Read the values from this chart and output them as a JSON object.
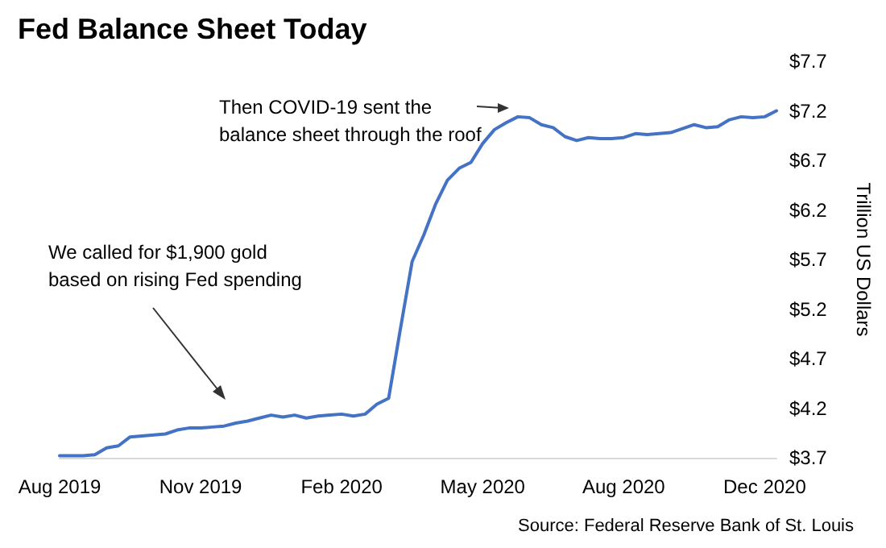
{
  "chart_data": {
    "type": "line",
    "title": "Fed Balance Sheet Today",
    "ylabel": "Trillion US Dollars",
    "categories": [
      "Aug 2019",
      null,
      null,
      null,
      null,
      null,
      null,
      null,
      null,
      null,
      null,
      null,
      "Nov 2019",
      null,
      null,
      null,
      null,
      null,
      null,
      null,
      null,
      null,
      null,
      null,
      "Feb 2020",
      null,
      null,
      null,
      null,
      null,
      null,
      null,
      null,
      null,
      null,
      null,
      "May 2020",
      null,
      null,
      null,
      null,
      null,
      null,
      null,
      null,
      null,
      null,
      null,
      "Aug 2020",
      null,
      null,
      null,
      null,
      null,
      null,
      null,
      null,
      null,
      null,
      null,
      "Dec 2020",
      null
    ],
    "series": [
      {
        "color": "#4472c4",
        "values": [
          3.72,
          3.72,
          3.72,
          3.73,
          3.8,
          3.82,
          3.91,
          3.92,
          3.93,
          3.94,
          3.98,
          4.0,
          4.0,
          4.01,
          4.02,
          4.05,
          4.07,
          4.1,
          4.13,
          4.11,
          4.13,
          4.1,
          4.12,
          4.13,
          4.14,
          4.12,
          4.14,
          4.24,
          4.3,
          5.0,
          5.68,
          5.95,
          6.26,
          6.5,
          6.62,
          6.68,
          6.87,
          7.01,
          7.08,
          7.14,
          7.13,
          7.06,
          7.03,
          6.94,
          6.9,
          6.93,
          6.92,
          6.92,
          6.93,
          6.97,
          6.96,
          6.97,
          6.98,
          7.02,
          7.06,
          7.03,
          7.04,
          7.11,
          7.14,
          7.13,
          7.14,
          7.2
        ]
      }
    ],
    "ylim": [
      3.7,
      7.7
    ],
    "yticks": [
      {
        "value": 3.7,
        "label": "$3.7"
      },
      {
        "value": 4.2,
        "label": "$4.2"
      },
      {
        "value": 4.7,
        "label": "$4.7"
      },
      {
        "value": 5.2,
        "label": "$5.2"
      },
      {
        "value": 5.7,
        "label": "$5.7"
      },
      {
        "value": 6.2,
        "label": "$6.2"
      },
      {
        "value": 6.7,
        "label": "$6.7"
      },
      {
        "value": 7.2,
        "label": "$7.2"
      },
      {
        "value": 7.7,
        "label": "$7.7"
      }
    ],
    "grid": false,
    "marker": "none",
    "line_style": "solid",
    "annotations": [
      "Then COVID-19 sent the\nbalance sheet through the roof",
      "We called for $1,900 gold\nbased on rising Fed spending",
      "Source: Federal Reserve Bank of St. Louis"
    ]
  }
}
